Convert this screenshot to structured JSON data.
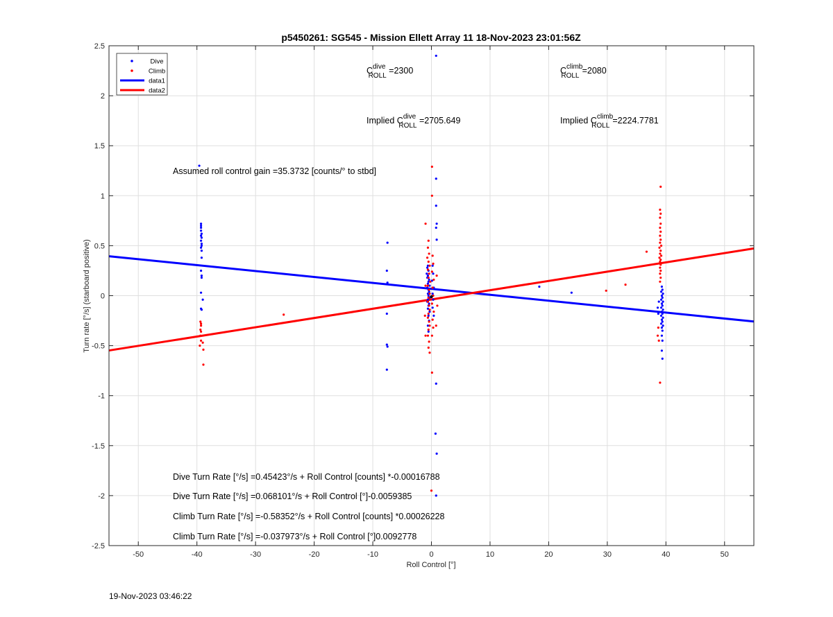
{
  "chart_data": {
    "type": "scatter",
    "title": "p5450261: SG545 - Mission Ellett Array 11 18-Nov-2023 23:01:56Z",
    "xlabel": "Roll Control [°]",
    "ylabel": "Turn rate [°/s] (starboard positive)",
    "xlim": [
      -55,
      55
    ],
    "ylim": [
      -2.5,
      2.5
    ],
    "xticks": [
      -50,
      -40,
      -30,
      -20,
      -10,
      0,
      10,
      20,
      30,
      40,
      50
    ],
    "yticks": [
      -2.5,
      -2,
      -1.5,
      -1,
      -0.5,
      0,
      0.5,
      1,
      1.5,
      2,
      2.5
    ],
    "grid": true,
    "legend": {
      "position": "top-left",
      "entries": [
        {
          "label": "Dive",
          "kind": "marker",
          "color": "#0000ff"
        },
        {
          "label": "Climb",
          "kind": "marker",
          "color": "#ff0000"
        },
        {
          "label": "data1",
          "kind": "line",
          "color": "#0000ff"
        },
        {
          "label": "data2",
          "kind": "line",
          "color": "#ff0000"
        }
      ]
    },
    "series": [
      {
        "name": "Dive",
        "color": "#0000ff",
        "points": [
          [
            -39.3,
            0.72
          ],
          [
            -39.3,
            0.7
          ],
          [
            -39.3,
            0.68
          ],
          [
            -39.3,
            0.65
          ],
          [
            -39.2,
            0.62
          ],
          [
            -39.3,
            0.6
          ],
          [
            -39.2,
            0.58
          ],
          [
            -39.3,
            0.55
          ],
          [
            -39.2,
            0.52
          ],
          [
            -39.2,
            0.5
          ],
          [
            -39.3,
            0.48
          ],
          [
            -39.2,
            0.45
          ],
          [
            -39.2,
            0.38
          ],
          [
            -39.3,
            0.25
          ],
          [
            -39.2,
            0.2
          ],
          [
            -39.2,
            0.18
          ],
          [
            -39.3,
            0.03
          ],
          [
            -39.0,
            -0.04
          ],
          [
            -39.3,
            -0.13
          ],
          [
            -39.2,
            -0.14
          ],
          [
            -39.6,
            1.3
          ],
          [
            -7.5,
            0.53
          ],
          [
            -7.6,
            0.25
          ],
          [
            -7.5,
            0.13
          ],
          [
            -7.6,
            -0.18
          ],
          [
            -7.6,
            -0.49
          ],
          [
            -7.5,
            -0.51
          ],
          [
            -7.6,
            -0.74
          ],
          [
            0.8,
            2.4
          ],
          [
            0.8,
            1.17
          ],
          [
            0.8,
            0.9
          ],
          [
            0.9,
            0.72
          ],
          [
            0.8,
            0.68
          ],
          [
            0.9,
            0.56
          ],
          [
            -0.6,
            0.3
          ],
          [
            -0.7,
            0.28
          ],
          [
            -0.5,
            0.25
          ],
          [
            -0.8,
            0.22
          ],
          [
            -0.6,
            0.2
          ],
          [
            -0.7,
            0.18
          ],
          [
            -0.4,
            0.16
          ],
          [
            -0.5,
            0.14
          ],
          [
            -0.6,
            0.12
          ],
          [
            -0.3,
            0.1
          ],
          [
            -0.7,
            0.08
          ],
          [
            -0.5,
            0.06
          ],
          [
            -0.4,
            0.04
          ],
          [
            -0.6,
            0.02
          ],
          [
            -0.5,
            0.0
          ],
          [
            -0.3,
            -0.02
          ],
          [
            -0.6,
            -0.04
          ],
          [
            -0.7,
            -0.06
          ],
          [
            -0.4,
            -0.08
          ],
          [
            -0.5,
            -0.1
          ],
          [
            -0.6,
            -0.13
          ],
          [
            -0.3,
            -0.16
          ],
          [
            -0.5,
            -0.2
          ],
          [
            -0.4,
            -0.25
          ],
          [
            -0.6,
            -0.3
          ],
          [
            -0.5,
            -0.36
          ],
          [
            0.2,
            0.3
          ],
          [
            0.3,
            0.22
          ],
          [
            0.1,
            0.15
          ],
          [
            0.4,
            0.08
          ],
          [
            0.2,
            0.02
          ],
          [
            0.3,
            -0.04
          ],
          [
            0.2,
            -0.12
          ],
          [
            0.4,
            -0.2
          ],
          [
            0.8,
            -0.88
          ],
          [
            0.7,
            -1.38
          ],
          [
            0.9,
            -1.58
          ],
          [
            0.8,
            -2.0
          ],
          [
            18.4,
            0.09
          ],
          [
            23.9,
            0.03
          ],
          [
            39.3,
            0.09
          ],
          [
            39.4,
            0.06
          ],
          [
            39.2,
            0.04
          ],
          [
            39.5,
            0.02
          ],
          [
            39.3,
            0.0
          ],
          [
            39.4,
            -0.02
          ],
          [
            39.2,
            -0.04
          ],
          [
            39.5,
            -0.06
          ],
          [
            39.3,
            -0.08
          ],
          [
            39.4,
            -0.1
          ],
          [
            39.2,
            -0.12
          ],
          [
            39.5,
            -0.14
          ],
          [
            39.3,
            -0.16
          ],
          [
            39.4,
            -0.18
          ],
          [
            39.2,
            -0.2
          ],
          [
            39.5,
            -0.22
          ],
          [
            39.3,
            -0.24
          ],
          [
            39.4,
            -0.26
          ],
          [
            39.2,
            -0.28
          ],
          [
            39.5,
            -0.3
          ],
          [
            39.3,
            -0.32
          ],
          [
            39.4,
            -0.35
          ],
          [
            39.3,
            -0.4
          ],
          [
            39.4,
            -0.45
          ],
          [
            39.3,
            -0.55
          ],
          [
            39.4,
            -0.63
          ],
          [
            38.6,
            -0.12
          ],
          [
            38.8,
            -0.06
          ],
          [
            38.7,
            -0.18
          ]
        ]
      },
      {
        "name": "Climb",
        "color": "#ff0000",
        "points": [
          [
            -39.4,
            -0.26
          ],
          [
            -39.3,
            -0.28
          ],
          [
            -39.3,
            -0.3
          ],
          [
            -39.4,
            -0.34
          ],
          [
            -39.3,
            -0.36
          ],
          [
            -39.4,
            -0.4
          ],
          [
            -39.3,
            -0.45
          ],
          [
            -39.0,
            -0.47
          ],
          [
            -39.5,
            -0.5
          ],
          [
            -38.9,
            -0.54
          ],
          [
            -38.9,
            -0.69
          ],
          [
            -25.2,
            -0.19
          ],
          [
            0.1,
            1.29
          ],
          [
            -1.0,
            0.72
          ],
          [
            0.1,
            1.0
          ],
          [
            0.1,
            -0.77
          ],
          [
            0.0,
            -1.95
          ],
          [
            -0.5,
            0.55
          ],
          [
            -0.6,
            0.48
          ],
          [
            -0.4,
            0.42
          ],
          [
            -0.7,
            0.38
          ],
          [
            -0.5,
            0.34
          ],
          [
            -0.3,
            0.3
          ],
          [
            -0.6,
            0.26
          ],
          [
            -0.4,
            0.22
          ],
          [
            -0.5,
            0.18
          ],
          [
            -0.2,
            0.14
          ],
          [
            -0.6,
            0.1
          ],
          [
            -0.4,
            0.06
          ],
          [
            -0.3,
            0.02
          ],
          [
            -0.5,
            -0.02
          ],
          [
            -0.6,
            -0.06
          ],
          [
            -0.4,
            -0.1
          ],
          [
            -0.3,
            -0.14
          ],
          [
            -0.5,
            -0.18
          ],
          [
            -0.6,
            -0.22
          ],
          [
            -0.4,
            -0.26
          ],
          [
            -0.3,
            -0.3
          ],
          [
            -0.5,
            -0.34
          ],
          [
            -0.6,
            -0.4
          ],
          [
            -0.4,
            -0.46
          ],
          [
            -0.5,
            -0.52
          ],
          [
            -0.3,
            -0.57
          ],
          [
            0.2,
            0.4
          ],
          [
            0.3,
            0.32
          ],
          [
            0.1,
            0.24
          ],
          [
            0.4,
            0.16
          ],
          [
            0.2,
            0.08
          ],
          [
            0.3,
            0.0
          ],
          [
            0.1,
            -0.08
          ],
          [
            0.4,
            -0.16
          ],
          [
            0.2,
            -0.24
          ],
          [
            0.3,
            -0.32
          ],
          [
            0.1,
            -0.4
          ],
          [
            0.9,
            0.2
          ],
          [
            1.0,
            -0.1
          ],
          [
            0.8,
            -0.3
          ],
          [
            -1.0,
            0.1
          ],
          [
            -1.1,
            -0.2
          ],
          [
            -1.0,
            -0.4
          ],
          [
            29.8,
            0.05
          ],
          [
            33.1,
            0.11
          ],
          [
            36.7,
            0.44
          ],
          [
            39.1,
            1.09
          ],
          [
            39.0,
            0.86
          ],
          [
            39.1,
            0.82
          ],
          [
            39.0,
            0.78
          ],
          [
            39.1,
            0.72
          ],
          [
            39.0,
            0.68
          ],
          [
            39.1,
            0.64
          ],
          [
            39.0,
            0.6
          ],
          [
            39.1,
            0.56
          ],
          [
            39.0,
            0.53
          ],
          [
            39.2,
            0.5
          ],
          [
            38.9,
            0.48
          ],
          [
            39.1,
            0.45
          ],
          [
            39.0,
            0.42
          ],
          [
            39.2,
            0.4
          ],
          [
            38.9,
            0.38
          ],
          [
            39.1,
            0.36
          ],
          [
            39.0,
            0.34
          ],
          [
            39.1,
            0.31
          ],
          [
            39.0,
            0.28
          ],
          [
            39.1,
            0.25
          ],
          [
            39.0,
            0.22
          ],
          [
            39.1,
            0.18
          ],
          [
            39.0,
            0.14
          ],
          [
            38.7,
            -0.32
          ],
          [
            38.6,
            -0.4
          ],
          [
            38.8,
            -0.45
          ],
          [
            39.0,
            -0.87
          ]
        ]
      }
    ],
    "fits": [
      {
        "name": "data1",
        "color": "#0000ff",
        "intercept": 0.068101,
        "slope": -0.0059385
      },
      {
        "name": "data2",
        "color": "#ff0000",
        "intercept": -0.037973,
        "slope": 0.0092778
      }
    ],
    "annotations": [
      {
        "id": "c-dive",
        "base": "C",
        "sup": "dive",
        "sub": "ROLL",
        "suffix": " =2300"
      },
      {
        "id": "c-climb",
        "base": "C",
        "sup": "climb",
        "sub": "ROLL",
        "suffix": " =2080"
      },
      {
        "id": "implied-dive",
        "prefix": "Implied ",
        "base": "C",
        "sup": "dive",
        "sub": "ROLL",
        "suffix": " =2705.649"
      },
      {
        "id": "implied-climb",
        "prefix": "Implied ",
        "base": "C",
        "sup": "climb",
        "sub": "ROLL",
        "suffix": " =2224.7781"
      },
      {
        "id": "gain",
        "text": "Assumed roll control gain =35.3732 [counts/° to stbd]"
      },
      {
        "id": "eq1",
        "text": "Dive Turn Rate [°/s] =0.45423°/s + Roll Control [counts] *-0.00016788"
      },
      {
        "id": "eq2",
        "text": "Dive Turn Rate [°/s] =0.068101°/s + Roll Control [°]-0.0059385"
      },
      {
        "id": "eq3",
        "text": "Climb Turn Rate [°/s] =-0.58352°/s + Roll Control [counts] *0.00026228"
      },
      {
        "id": "eq4",
        "text": "Climb Turn Rate [°/s] =-0.037973°/s + Roll Control [°]0.0092778"
      }
    ]
  },
  "footer": {
    "timestamp": "19-Nov-2023 03:46:22"
  }
}
